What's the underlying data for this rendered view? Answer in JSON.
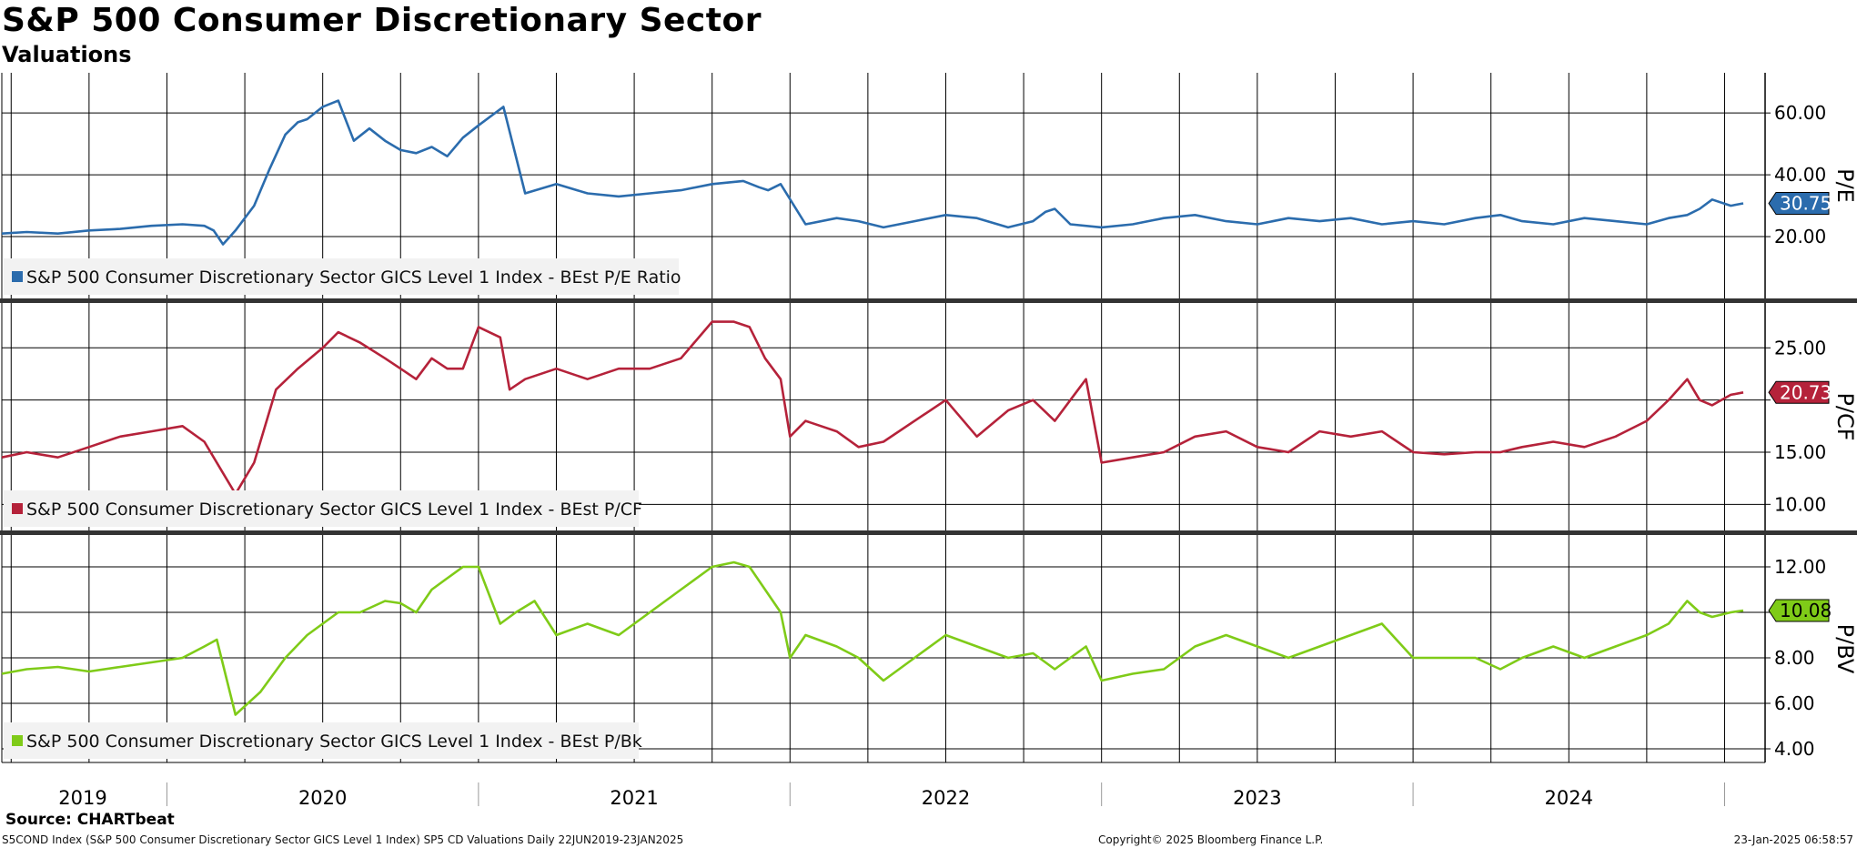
{
  "header": {
    "title": "S&P 500 Consumer Discretionary Sector",
    "subtitle": "Valuations"
  },
  "footer": {
    "source": "Source: CHARTbeat",
    "left": "S5COND Index (S&P 500 Consumer Discretionary Sector GICS Level 1 Index) SP5 CD Valuations  Daily 22JUN2019-23JAN2025",
    "center": "Copyright© 2025 Bloomberg Finance L.P.",
    "right": "23-Jan-2025 06:58:57"
  },
  "chart_data": [
    {
      "type": "line",
      "name": "pe",
      "ylabel": "P/E",
      "ylim": [
        0,
        73
      ],
      "yticks": [
        20,
        40,
        60
      ],
      "tick_labels": [
        "20.00",
        "40.00",
        "60.00"
      ],
      "color": "#2b6cad",
      "legend": "S&P 500 Consumer Discretionary Sector GICS Level 1 Index - BEst P/E Ratio",
      "last_value_label": "30.75",
      "x": [
        2019.47,
        2019.55,
        2019.65,
        2019.75,
        2019.85,
        2019.95,
        2020.05,
        2020.12,
        2020.15,
        2020.18,
        2020.22,
        2020.28,
        2020.33,
        2020.38,
        2020.42,
        2020.45,
        2020.5,
        2020.55,
        2020.6,
        2020.65,
        2020.7,
        2020.75,
        2020.8,
        2020.85,
        2020.9,
        2020.95,
        2021.0,
        2021.08,
        2021.15,
        2021.25,
        2021.35,
        2021.45,
        2021.55,
        2021.65,
        2021.75,
        2021.85,
        2021.9,
        2021.93,
        2021.97,
        2022.05,
        2022.15,
        2022.22,
        2022.3,
        2022.4,
        2022.5,
        2022.6,
        2022.7,
        2022.78,
        2022.82,
        2022.85,
        2022.9,
        2023.0,
        2023.1,
        2023.2,
        2023.3,
        2023.4,
        2023.5,
        2023.6,
        2023.7,
        2023.8,
        2023.9,
        2024.0,
        2024.1,
        2024.2,
        2024.28,
        2024.35,
        2024.45,
        2024.55,
        2024.65,
        2024.75,
        2024.82,
        2024.88,
        2024.92,
        2024.96,
        2025.02,
        2025.06
      ],
      "y": [
        21,
        21.5,
        21,
        22,
        22.5,
        23.5,
        24,
        23.5,
        22,
        17.5,
        22,
        30,
        42,
        53,
        57,
        58,
        62,
        64,
        51,
        55,
        51,
        48,
        47,
        49,
        46,
        52,
        56,
        62,
        34,
        37,
        34,
        33,
        34,
        35,
        37,
        38,
        36,
        35,
        37,
        24,
        26,
        25,
        23,
        25,
        27,
        26,
        23,
        25,
        28,
        29,
        24,
        23,
        24,
        26,
        27,
        25,
        24,
        26,
        25,
        26,
        24,
        25,
        24,
        26,
        27,
        25,
        24,
        26,
        25,
        24,
        26,
        27,
        29,
        32,
        30,
        30.75
      ]
    },
    {
      "type": "line",
      "name": "pcf",
      "ylabel": "P/CF",
      "ylim": [
        7.5,
        29.3
      ],
      "yticks": [
        10,
        15,
        20,
        25
      ],
      "tick_labels": [
        "10.00",
        "15.00",
        "",
        "25.00"
      ],
      "color": "#b5223a",
      "legend": "S&P 500 Consumer Discretionary Sector GICS Level 1 Index - BEst P/CF",
      "last_value_label": "20.73",
      "x": [
        2019.47,
        2019.55,
        2019.65,
        2019.75,
        2019.85,
        2019.95,
        2020.05,
        2020.12,
        2020.18,
        2020.22,
        2020.28,
        2020.35,
        2020.42,
        2020.5,
        2020.55,
        2020.62,
        2020.7,
        2020.75,
        2020.8,
        2020.85,
        2020.9,
        2020.95,
        2021.0,
        2021.07,
        2021.1,
        2021.15,
        2021.25,
        2021.35,
        2021.45,
        2021.55,
        2021.65,
        2021.75,
        2021.82,
        2021.87,
        2021.92,
        2021.97,
        2022.0,
        2022.05,
        2022.15,
        2022.22,
        2022.3,
        2022.4,
        2022.5,
        2022.6,
        2022.7,
        2022.78,
        2022.85,
        2022.9,
        2022.95,
        2023.0,
        2023.1,
        2023.2,
        2023.3,
        2023.4,
        2023.5,
        2023.6,
        2023.7,
        2023.8,
        2023.9,
        2024.0,
        2024.1,
        2024.2,
        2024.28,
        2024.35,
        2024.45,
        2024.55,
        2024.65,
        2024.75,
        2024.82,
        2024.88,
        2024.92,
        2024.96,
        2025.02,
        2025.06
      ],
      "y": [
        14.5,
        15,
        14.5,
        15.5,
        16.5,
        17,
        17.5,
        16,
        13,
        11,
        14,
        21,
        23,
        25,
        26.5,
        25.5,
        24,
        23,
        22,
        24,
        23,
        23,
        27,
        26,
        21,
        22,
        23,
        22,
        23,
        23,
        24,
        27.5,
        27.5,
        27,
        24,
        22,
        16.5,
        18,
        17,
        15.5,
        16,
        18,
        20,
        16.5,
        19,
        20,
        18,
        20,
        22,
        14,
        14.5,
        15,
        16.5,
        17,
        15.5,
        15,
        17,
        16.5,
        17,
        15,
        14.8,
        15,
        15,
        15.5,
        16,
        15.5,
        16.5,
        18,
        20,
        22,
        20,
        19.5,
        20.5,
        20.73
      ]
    },
    {
      "type": "line",
      "name": "pbv",
      "ylabel": "P/BV",
      "ylim": [
        3.4,
        13.4
      ],
      "yticks": [
        4,
        6,
        8,
        10,
        12
      ],
      "tick_labels": [
        "4.00",
        "6.00",
        "8.00",
        "",
        "12.00"
      ],
      "color": "#7fcb18",
      "legend": "S&P 500 Consumer Discretionary Sector GICS Level 1 Index - BEst P/Bk",
      "last_value_label": "10.08",
      "x": [
        2019.47,
        2019.55,
        2019.65,
        2019.75,
        2019.85,
        2019.95,
        2020.05,
        2020.12,
        2020.16,
        2020.22,
        2020.3,
        2020.38,
        2020.45,
        2020.5,
        2020.55,
        2020.62,
        2020.7,
        2020.75,
        2020.8,
        2020.85,
        2020.9,
        2020.95,
        2021.0,
        2021.07,
        2021.12,
        2021.18,
        2021.25,
        2021.35,
        2021.45,
        2021.5,
        2021.55,
        2021.65,
        2021.75,
        2021.82,
        2021.87,
        2021.92,
        2021.97,
        2022.0,
        2022.05,
        2022.15,
        2022.22,
        2022.3,
        2022.4,
        2022.5,
        2022.6,
        2022.7,
        2022.78,
        2022.85,
        2022.9,
        2022.95,
        2023.0,
        2023.1,
        2023.2,
        2023.3,
        2023.4,
        2023.5,
        2023.6,
        2023.7,
        2023.8,
        2023.9,
        2024.0,
        2024.1,
        2024.2,
        2024.28,
        2024.35,
        2024.45,
        2024.55,
        2024.65,
        2024.75,
        2024.82,
        2024.88,
        2024.92,
        2024.96,
        2025.02,
        2025.06
      ],
      "y": [
        7.3,
        7.5,
        7.6,
        7.4,
        7.6,
        7.8,
        8,
        8.5,
        8.8,
        5.5,
        6.5,
        8,
        9,
        9.5,
        10,
        10,
        10.5,
        10.4,
        10,
        11,
        11.5,
        12,
        12,
        9.5,
        10,
        10.5,
        9,
        9.5,
        9,
        9.5,
        10,
        11,
        12,
        12.2,
        12,
        11,
        10,
        8,
        9,
        8.5,
        8,
        7,
        8,
        9,
        8.5,
        8,
        8.2,
        7.5,
        8,
        8.5,
        7,
        7.3,
        7.5,
        8.5,
        9,
        8.5,
        8,
        8.5,
        9,
        9.5,
        8,
        8,
        8,
        7.5,
        8,
        8.5,
        8,
        8.5,
        9,
        9.5,
        10.5,
        10,
        9.8,
        10,
        10.08
      ]
    }
  ],
  "x_axis": {
    "year_labels": [
      "2019",
      "2020",
      "2021",
      "2022",
      "2023",
      "2024"
    ],
    "year_label_positions": [
      2019.73,
      2020.5,
      2021.5,
      2022.5,
      2023.5,
      2024.5
    ],
    "year_boundaries": [
      2020.0,
      2021.0,
      2022.0,
      2023.0,
      2024.0,
      2025.0
    ],
    "x_range": [
      2019.47,
      2025.13
    ]
  }
}
